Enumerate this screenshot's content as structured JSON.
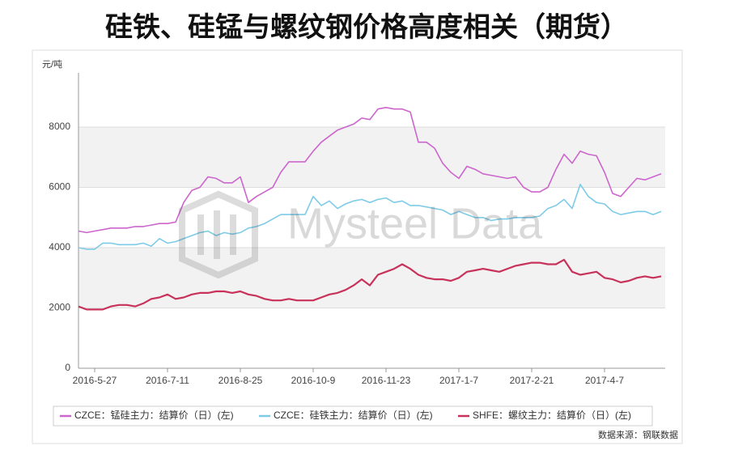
{
  "chart_data": {
    "type": "line",
    "title": "硅铁、硅锰与螺纹钢价格高度相关（期货）",
    "y_label": "元/吨",
    "watermark": "Mysteel Data",
    "source": "数据来源：钢联数据",
    "categories": [
      null,
      null,
      "2016-5-27",
      null,
      null,
      null,
      null,
      null,
      null,
      null,
      null,
      "2016-7-11",
      null,
      null,
      null,
      null,
      null,
      null,
      null,
      null,
      "2016-8-25",
      null,
      null,
      null,
      null,
      null,
      null,
      null,
      null,
      "2016-10-9",
      null,
      null,
      null,
      null,
      null,
      null,
      null,
      null,
      "2016-11-23",
      null,
      null,
      null,
      null,
      null,
      null,
      null,
      null,
      "2017-1-7",
      null,
      null,
      null,
      null,
      null,
      null,
      null,
      null,
      "2017-2-21",
      null,
      null,
      null,
      null,
      null,
      null,
      null,
      null,
      "2017-4-7",
      null,
      null,
      null,
      null,
      null,
      null,
      null
    ],
    "ylim": [
      0,
      9800
    ],
    "yticks": [
      0,
      2000,
      4000,
      6000,
      8000
    ],
    "grid": true,
    "series": [
      {
        "name": "CZCE：锰硅主力：结算价（日）(左)",
        "color": "#cc66cc",
        "values": [
          4550,
          4500,
          4550,
          4600,
          4650,
          4650,
          4650,
          4700,
          4700,
          4750,
          4800,
          4800,
          4850,
          5500,
          5900,
          6000,
          6350,
          6300,
          6150,
          6150,
          6350,
          5500,
          5700,
          5850,
          6000,
          6500,
          6850,
          6850,
          6850,
          7200,
          7500,
          7700,
          7900,
          8000,
          8100,
          8300,
          8250,
          8600,
          8650,
          8600,
          8600,
          8500,
          7500,
          7500,
          7300,
          6800,
          6500,
          6300,
          6700,
          6600,
          6450,
          6400,
          6350,
          6300,
          6350,
          6000,
          5850,
          5850,
          6000,
          6600,
          7100,
          6800,
          7200,
          7100,
          7050,
          6500,
          5800,
          5700,
          6000,
          6300,
          6250,
          6350,
          6450
        ]
      },
      {
        "name": "CZCE：硅铁主力：结算价（日）(左)",
        "color": "#7ecbe8",
        "values": [
          4000,
          3950,
          3950,
          4150,
          4150,
          4100,
          4100,
          4100,
          4150,
          4050,
          4300,
          4150,
          4200,
          4300,
          4400,
          4500,
          4550,
          4400,
          4500,
          4450,
          4500,
          4650,
          4700,
          4800,
          4950,
          5100,
          5100,
          5100,
          5100,
          5700,
          5400,
          5550,
          5300,
          5450,
          5550,
          5600,
          5500,
          5600,
          5650,
          5500,
          5550,
          5400,
          5400,
          5350,
          5300,
          5250,
          5100,
          5200,
          5100,
          5000,
          5000,
          4900,
          4950,
          4950,
          5000,
          5000,
          5000,
          5050,
          5300,
          5400,
          5600,
          5300,
          6100,
          5700,
          5500,
          5450,
          5200,
          5100,
          5150,
          5200,
          5200,
          5100,
          5200
        ]
      },
      {
        "name": "SHFE：螺纹主力：结算价（日）(左)",
        "color": "#c8325a",
        "values": [
          2050,
          1950,
          1950,
          1950,
          2050,
          2100,
          2100,
          2050,
          2150,
          2300,
          2350,
          2450,
          2300,
          2350,
          2450,
          2500,
          2500,
          2550,
          2550,
          2500,
          2550,
          2450,
          2400,
          2300,
          2250,
          2250,
          2300,
          2250,
          2250,
          2250,
          2350,
          2450,
          2500,
          2600,
          2750,
          2950,
          2750,
          3100,
          3200,
          3300,
          3450,
          3300,
          3100,
          3000,
          2950,
          2950,
          2900,
          3000,
          3200,
          3250,
          3300,
          3250,
          3200,
          3300,
          3400,
          3450,
          3500,
          3500,
          3450,
          3450,
          3600,
          3200,
          3100,
          3150,
          3200,
          3000,
          2950,
          2850,
          2900,
          3000,
          3050,
          3000,
          3050
        ]
      }
    ]
  }
}
